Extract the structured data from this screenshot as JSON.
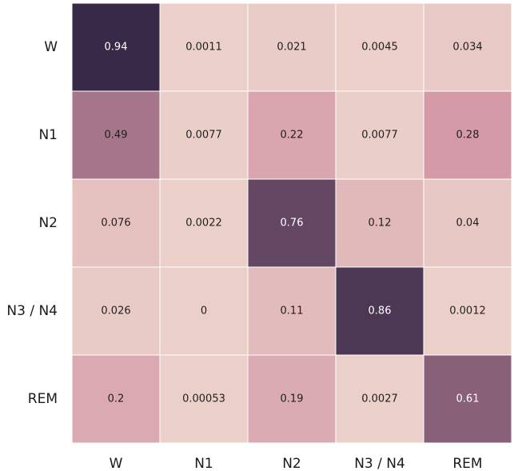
{
  "chart_data": {
    "type": "heatmap",
    "title": "",
    "xlabel": "",
    "ylabel": "",
    "x_categories": [
      "W",
      "N1",
      "N2",
      "N3 / N4",
      "REM"
    ],
    "y_categories": [
      "W",
      "N1",
      "N2",
      "N3 / N4",
      "REM"
    ],
    "values": [
      [
        0.94,
        0.0011,
        0.021,
        0.0045,
        0.034
      ],
      [
        0.49,
        0.0077,
        0.22,
        0.0077,
        0.28
      ],
      [
        0.076,
        0.0022,
        0.76,
        0.12,
        0.04
      ],
      [
        0.026,
        0,
        0.11,
        0.86,
        0.0012
      ],
      [
        0.2,
        0.00053,
        0.19,
        0.0027,
        0.61
      ]
    ],
    "value_labels": [
      [
        "0.94",
        "0.0011",
        "0.021",
        "0.0045",
        "0.034"
      ],
      [
        "0.49",
        "0.0077",
        "0.22",
        "0.0077",
        "0.28"
      ],
      [
        "0.076",
        "0.0022",
        "0.76",
        "0.12",
        "0.04"
      ],
      [
        "0.026",
        "0",
        "0.11",
        "0.86",
        "0.0012"
      ],
      [
        "0.2",
        "0.00053",
        "0.19",
        "0.0027",
        "0.61"
      ]
    ],
    "color_scale": {
      "low": "#ebd0c9",
      "mid": "#d296a6",
      "high": "#2b1f40"
    },
    "grid": false,
    "legend": "none"
  }
}
